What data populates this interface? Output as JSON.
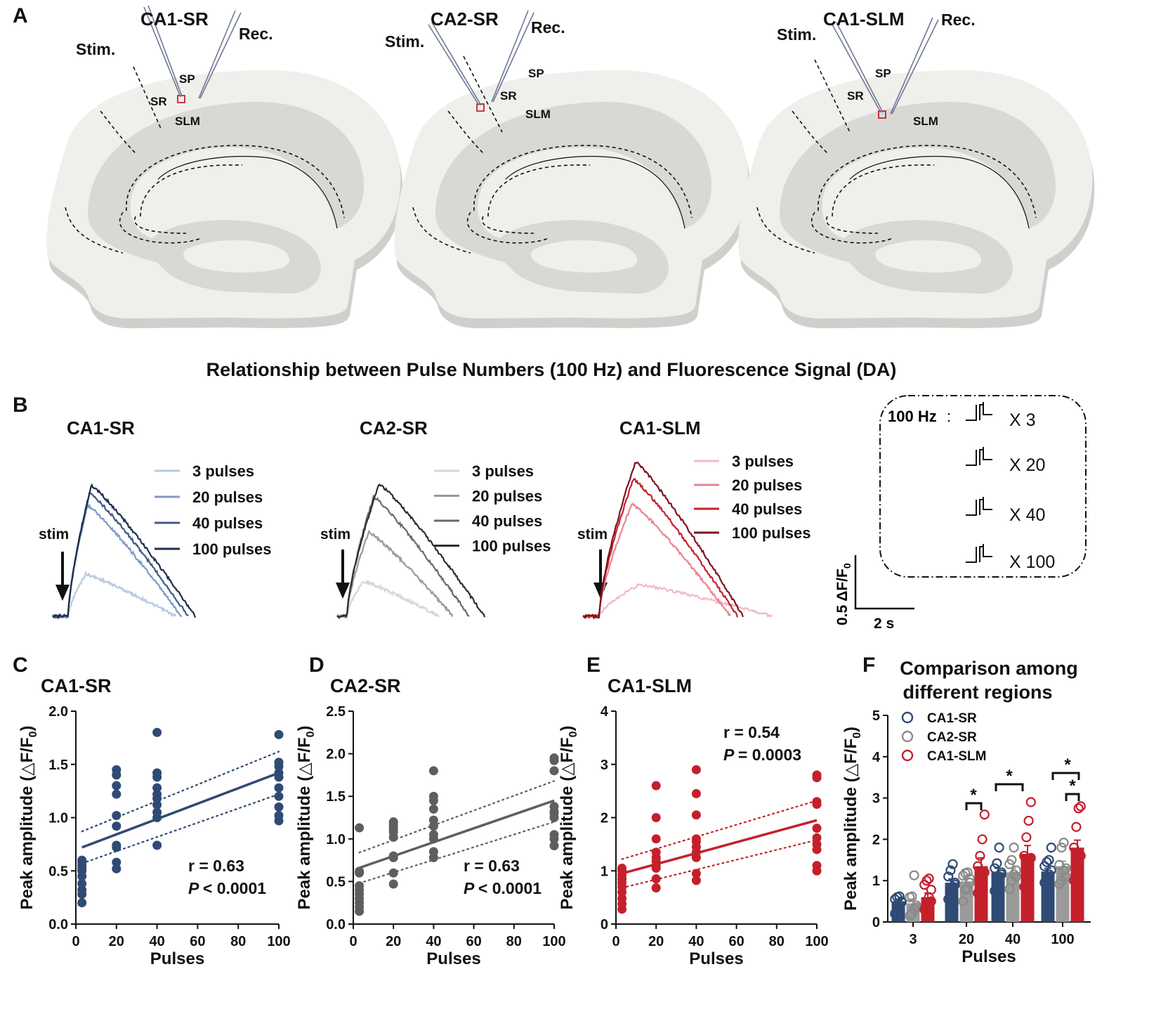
{
  "panels": {
    "A": "A",
    "B": "B",
    "C": "C",
    "D": "D",
    "E": "E",
    "F": "F"
  },
  "panelA": {
    "slices": [
      {
        "title": "CA1-SR",
        "stim": "Stim.",
        "rec": "Rec.",
        "sp": "SP",
        "sr": "SR",
        "slm": "SLM"
      },
      {
        "title": "CA2-SR",
        "stim": "Stim.",
        "rec": "Rec.",
        "sp": "SP",
        "sr": "SR",
        "slm": "SLM"
      },
      {
        "title": "CA1-SLM",
        "stim": "Stim.",
        "rec": "Rec.",
        "sp": "SP",
        "sr": "SR",
        "slm": "SLM"
      }
    ]
  },
  "colors": {
    "navy": [
      "#b9c8e0",
      "#7f9ac4",
      "#3f5a86",
      "#1d2e4c"
    ],
    "gray": [
      "#d6d6d6",
      "#9a9a9a",
      "#6a6a6a",
      "#2e2e2e"
    ],
    "red": [
      "#f3b9c0",
      "#e98592",
      "#c8202f",
      "#7c1320"
    ],
    "navyMain": "#2f4a74",
    "grayMain": "#5e5e5e",
    "redMain": "#c4202c",
    "hollowGray": "#8a8a8a"
  },
  "panelB": {
    "title": "Relationship between Pulse Numbers (100 Hz) and Fluorescence Signal (DA)",
    "stim_label": "stim",
    "groups": [
      {
        "name": "CA1-SR",
        "legend": [
          "3 pulses",
          "20 pulses",
          "40 pulses",
          "100 pulses"
        ]
      },
      {
        "name": "CA2-SR",
        "legend": [
          "3 pulses",
          "20 pulses",
          "40 pulses",
          "100 pulses"
        ]
      },
      {
        "name": "CA1-SLM",
        "legend": [
          "3 pulses",
          "20 pulses",
          "40 pulses",
          "100 pulses"
        ]
      }
    ],
    "protocol": {
      "freq": "100 Hz",
      "rows": [
        "X 3",
        "X 20",
        "X 40",
        "X 100"
      ]
    },
    "scale": {
      "y": "0.5 ΔF/F",
      "y_sub": "0",
      "x": "2 s"
    }
  },
  "chart_data": [
    {
      "type": "scatter",
      "panel": "C",
      "title": "CA1-SR",
      "xlabel": "Pulses",
      "ylabel": "Peak amplitude (△F/F",
      "ylabel_sub": "0",
      "ylabel_end": ")",
      "xlim": [
        0,
        100
      ],
      "ylim": [
        0,
        2.0
      ],
      "xticks": [
        "0",
        "20",
        "40",
        "60",
        "80",
        "100"
      ],
      "yticks": [
        "0.0",
        "0.5",
        "1.0",
        "1.5",
        "2.0"
      ],
      "x": [
        3,
        3,
        3,
        3,
        3,
        3,
        3,
        3,
        3,
        3,
        20,
        20,
        20,
        20,
        20,
        20,
        20,
        20,
        20,
        20,
        40,
        40,
        40,
        40,
        40,
        40,
        40,
        40,
        40,
        40,
        100,
        100,
        100,
        100,
        100,
        100,
        100,
        100,
        100,
        100
      ],
      "y": [
        0.2,
        0.28,
        0.38,
        0.45,
        0.5,
        0.52,
        0.55,
        0.58,
        0.6,
        0.32,
        0.52,
        0.58,
        0.72,
        0.74,
        0.92,
        1.02,
        1.22,
        1.3,
        1.4,
        1.45,
        0.74,
        1.0,
        1.05,
        1.12,
        1.18,
        1.22,
        1.28,
        1.38,
        1.42,
        1.8,
        0.97,
        1.02,
        1.1,
        1.2,
        1.28,
        1.38,
        1.42,
        1.48,
        1.52,
        1.78
      ],
      "fit": {
        "x": [
          3,
          100
        ],
        "y": [
          0.72,
          1.42
        ]
      },
      "ci_upper": {
        "x": [
          3,
          100
        ],
        "y": [
          0.87,
          1.62
        ]
      },
      "ci_lower": {
        "x": [
          3,
          100
        ],
        "y": [
          0.57,
          1.22
        ]
      },
      "stat_r": "r = 0.63",
      "stat_p": "< 0.0001"
    },
    {
      "type": "scatter",
      "panel": "D",
      "title": "CA2-SR",
      "xlabel": "Pulses",
      "ylabel": "Peak amplitude (△F/F",
      "ylabel_sub": "0",
      "ylabel_end": ")",
      "xlim": [
        0,
        100
      ],
      "ylim": [
        0,
        2.5
      ],
      "xticks": [
        "0",
        "20",
        "40",
        "60",
        "80",
        "100"
      ],
      "yticks": [
        "0.0",
        "0.5",
        "1.0",
        "1.5",
        "2.0",
        "2.5"
      ],
      "x": [
        3,
        3,
        3,
        3,
        3,
        3,
        3,
        3,
        3,
        3,
        20,
        20,
        20,
        20,
        20,
        20,
        20,
        20,
        20,
        20,
        40,
        40,
        40,
        40,
        40,
        40,
        40,
        40,
        40,
        40,
        100,
        100,
        100,
        100,
        100,
        100,
        100,
        100,
        100,
        100
      ],
      "y": [
        0.15,
        0.2,
        0.25,
        0.3,
        0.35,
        0.4,
        0.45,
        0.6,
        0.62,
        1.13,
        0.47,
        0.6,
        0.78,
        0.8,
        1.02,
        1.08,
        1.12,
        1.15,
        1.18,
        1.2,
        0.78,
        0.85,
        1.0,
        1.05,
        1.15,
        1.22,
        1.35,
        1.45,
        1.5,
        1.8,
        0.92,
        1.0,
        1.05,
        1.25,
        1.3,
        1.32,
        1.38,
        1.8,
        1.92,
        1.95
      ],
      "fit": {
        "x": [
          3,
          100
        ],
        "y": [
          0.66,
          1.45
        ]
      },
      "ci_upper": {
        "x": [
          3,
          100
        ],
        "y": [
          0.84,
          1.68
        ]
      },
      "ci_lower": {
        "x": [
          3,
          100
        ],
        "y": [
          0.48,
          1.2
        ]
      },
      "stat_r": "r = 0.63",
      "stat_p": "< 0.0001"
    },
    {
      "type": "scatter",
      "panel": "E",
      "title": "CA1-SLM",
      "xlabel": "Pulses",
      "ylabel": "Peak amplitude (△F/F",
      "ylabel_sub": "0",
      "ylabel_end": ")",
      "xlim": [
        0,
        100
      ],
      "ylim": [
        0,
        4
      ],
      "xticks": [
        "0",
        "20",
        "40",
        "60",
        "80",
        "100"
      ],
      "yticks": [
        "0",
        "1",
        "2",
        "3",
        "4"
      ],
      "x": [
        3,
        3,
        3,
        3,
        3,
        3,
        3,
        3,
        3,
        3,
        20,
        20,
        20,
        20,
        20,
        20,
        20,
        20,
        20,
        20,
        40,
        40,
        40,
        40,
        40,
        40,
        40,
        40,
        40,
        40,
        100,
        100,
        100,
        100,
        100,
        100,
        100,
        100,
        100,
        100
      ],
      "y": [
        0.28,
        0.38,
        0.48,
        0.6,
        0.7,
        0.78,
        0.85,
        0.92,
        1.0,
        1.05,
        0.68,
        0.85,
        1.05,
        1.1,
        1.18,
        1.25,
        1.35,
        1.6,
        2.0,
        2.6,
        0.82,
        0.95,
        1.25,
        1.35,
        1.45,
        1.55,
        1.6,
        2.05,
        2.45,
        2.9,
        1.0,
        1.1,
        1.4,
        1.5,
        1.62,
        1.8,
        2.25,
        2.3,
        2.75,
        2.8
      ],
      "fit": {
        "x": [
          3,
          100
        ],
        "y": [
          0.95,
          1.95
        ]
      },
      "ci_upper": {
        "x": [
          3,
          100
        ],
        "y": [
          1.22,
          2.32
        ]
      },
      "ci_lower": {
        "x": [
          3,
          100
        ],
        "y": [
          0.68,
          1.58
        ]
      },
      "stat_r": "r = 0.54",
      "stat_p": "= 0.0003"
    },
    {
      "type": "bar",
      "panel": "F",
      "title_lines": [
        "Comparison among",
        "different regions"
      ],
      "xlabel": "Pulses",
      "ylabel": "Peak amplitude (△F/F",
      "ylabel_sub": "0",
      "ylabel_end": ")",
      "categories": [
        "3",
        "20",
        "40",
        "100"
      ],
      "ylim": [
        0,
        5
      ],
      "yticks": [
        "0",
        "1",
        "2",
        "3",
        "4",
        "5"
      ],
      "series": [
        {
          "name": "CA1-SR",
          "values": [
            0.5,
            0.95,
            1.2,
            1.22
          ],
          "errors": [
            0.05,
            0.09,
            0.1,
            0.08
          ],
          "points": [
            [
              0.2,
              0.32,
              0.4,
              0.5,
              0.55,
              0.6,
              0.62,
              0.48
            ],
            [
              0.55,
              0.72,
              0.85,
              0.95,
              1.1,
              1.25,
              1.4,
              0.9
            ],
            [
              0.75,
              1.0,
              1.1,
              1.2,
              1.3,
              1.42,
              1.8,
              1.15
            ],
            [
              0.95,
              1.05,
              1.15,
              1.25,
              1.35,
              1.45,
              1.5,
              1.8
            ]
          ]
        },
        {
          "name": "CA2-SR",
          "values": [
            0.45,
            0.98,
            1.2,
            1.35
          ],
          "errors": [
            0.1,
            0.08,
            0.1,
            0.12
          ],
          "points": [
            [
              0.15,
              0.2,
              0.3,
              0.4,
              0.6,
              0.62,
              1.13,
              0.35
            ],
            [
              0.5,
              0.78,
              0.8,
              1.05,
              1.12,
              1.18,
              1.2,
              0.95
            ],
            [
              0.8,
              1.0,
              1.15,
              1.25,
              1.4,
              1.5,
              1.8,
              1.1
            ],
            [
              0.92,
              1.0,
              1.25,
              1.3,
              1.38,
              1.8,
              1.92,
              1.1
            ]
          ]
        },
        {
          "name": "CA1-SLM",
          "values": [
            0.6,
            1.35,
            1.65,
            1.8
          ],
          "errors": [
            0.1,
            0.2,
            0.2,
            0.18
          ],
          "points": [
            [
              0.3,
              0.45,
              0.6,
              0.78,
              0.9,
              1.0,
              1.05,
              0.5
            ],
            [
              0.7,
              0.95,
              1.1,
              1.2,
              1.35,
              1.6,
              2.0,
              2.6
            ],
            [
              0.85,
              1.25,
              1.4,
              1.55,
              1.6,
              2.05,
              2.45,
              2.9
            ],
            [
              1.0,
              1.1,
              1.4,
              1.6,
              1.8,
              2.3,
              2.75,
              2.8
            ]
          ]
        }
      ],
      "significance": "*"
    }
  ]
}
